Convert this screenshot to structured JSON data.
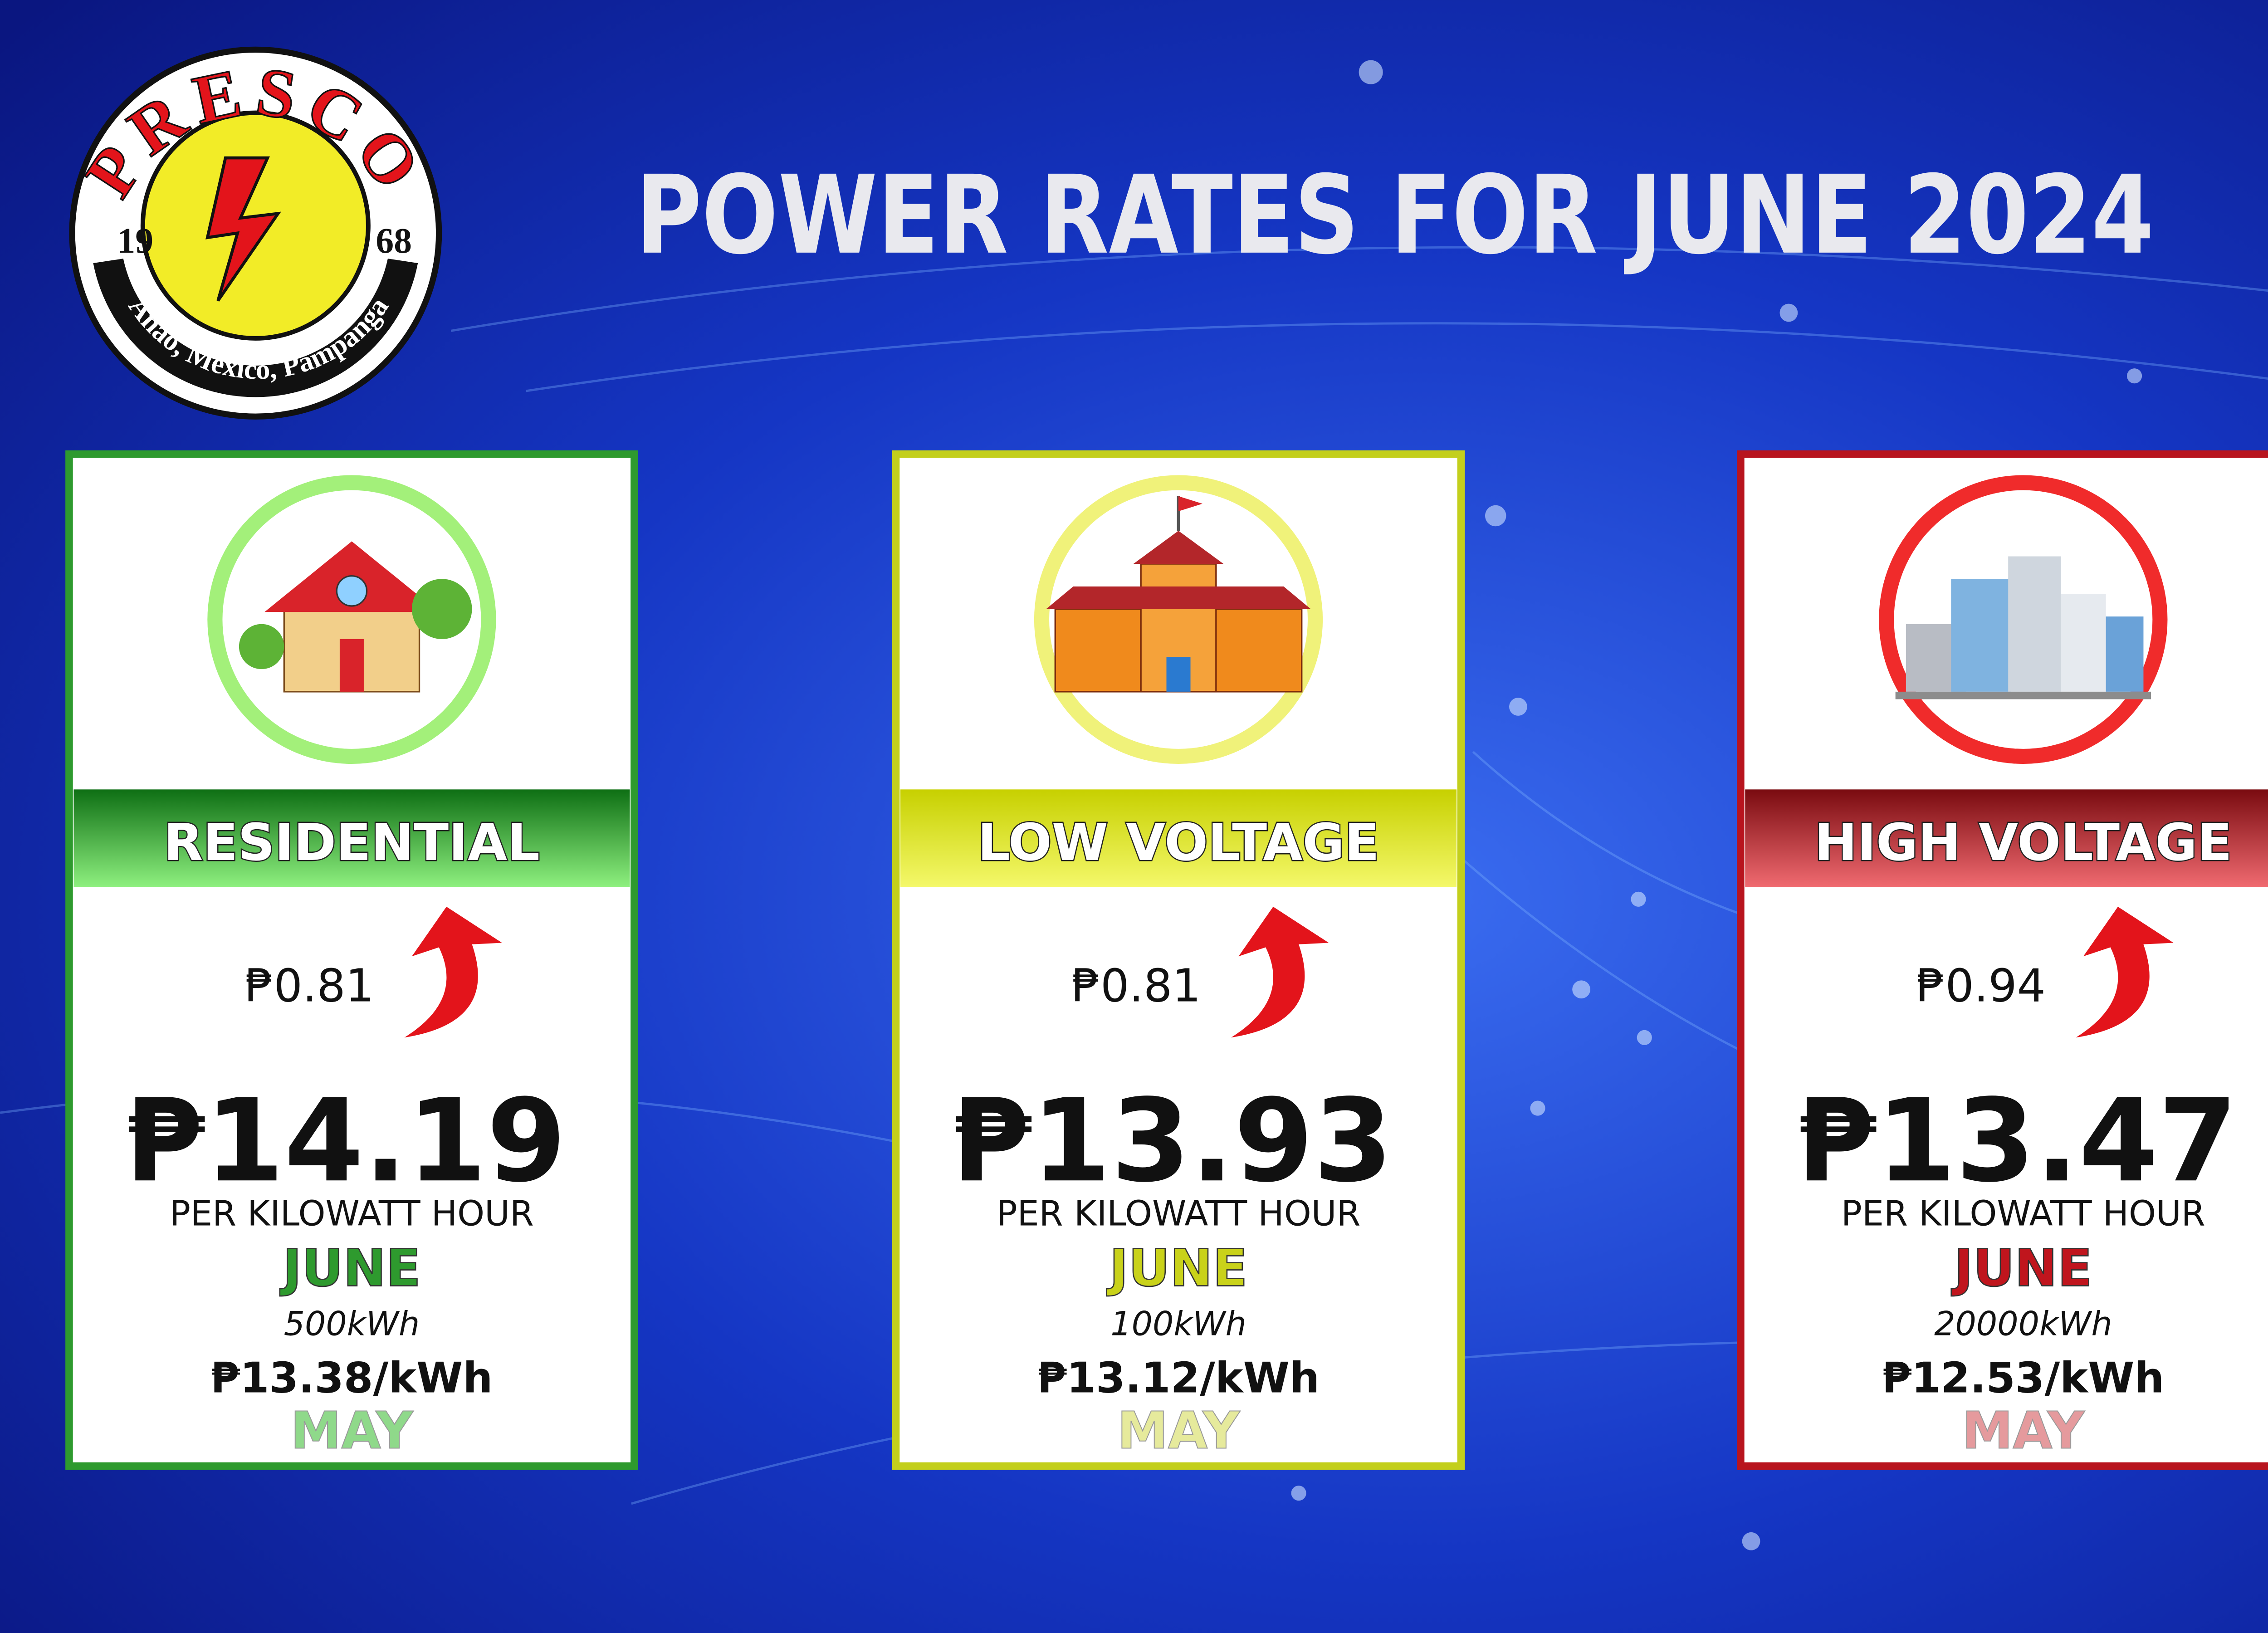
{
  "logo": {
    "name": "PRESCO",
    "year_left": "19",
    "year_right": "68",
    "address": "Anao, Mexico, Pampanga"
  },
  "title": "POWER RATES FOR JUNE 2024",
  "cards": [
    {
      "category": "RESIDENTIAL",
      "increase": "₱0.81",
      "rate": "₱14.19",
      "unit": "PER KILOWATT HOUR",
      "current_month": "JUNE",
      "consumption": "500kWh",
      "previous_rate": "₱13.38/kWh",
      "previous_month": "MAY"
    },
    {
      "category": "LOW VOLTAGE",
      "increase": "₱0.81",
      "rate": "₱13.93",
      "unit": "PER KILOWATT HOUR",
      "current_month": "JUNE",
      "consumption": "100kWh",
      "previous_rate": "₱13.12/kWh",
      "previous_month": "MAY"
    },
    {
      "category": "HIGH VOLTAGE",
      "increase": "₱0.94",
      "rate": "₱13.47",
      "unit": "PER KILOWATT HOUR",
      "current_month": "JUNE",
      "consumption": "20000kWh",
      "previous_rate": "₱12.53/kWh",
      "previous_month": "MAY"
    }
  ]
}
